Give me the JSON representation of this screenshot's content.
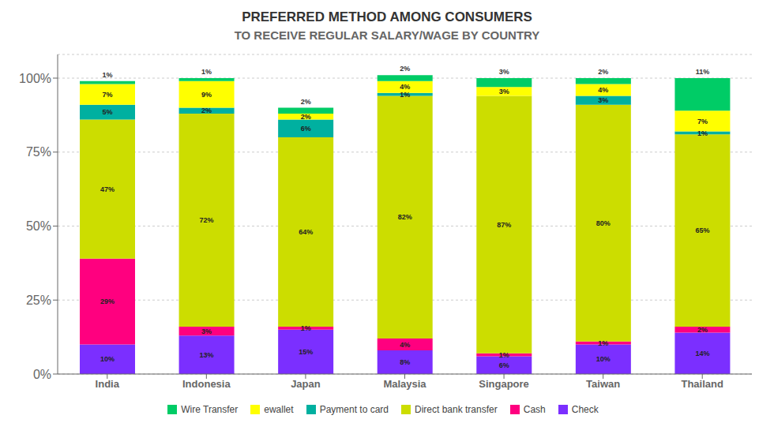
{
  "chart_data": {
    "type": "bar",
    "title": "PREFERRED METHOD AMONG CONSUMERS",
    "subtitle": "TO RECEIVE REGULAR SALARY/WAGE BY COUNTRY",
    "categories": [
      "India",
      "Indonesia",
      "Japan",
      "Malaysia",
      "Singapore",
      "Taiwan",
      "Thailand"
    ],
    "series": [
      {
        "name": "Check",
        "color": "#7b2fff",
        "values": [
          10,
          13,
          15,
          8,
          6,
          10,
          14
        ],
        "value_labels": [
          "10%",
          "13%",
          "15%",
          "8%",
          "6%",
          "10%",
          "14%"
        ]
      },
      {
        "name": "Cash",
        "color": "#ff007f",
        "values": [
          29,
          3,
          1,
          4,
          1,
          1,
          2
        ],
        "value_labels": [
          "29%",
          "3%",
          "1%",
          "4%",
          "1%",
          "1%",
          "2%"
        ]
      },
      {
        "name": "Direct bank transfer",
        "color": "#ccdd00",
        "values": [
          47,
          72,
          64,
          82,
          87,
          80,
          65
        ],
        "value_labels": [
          "47%",
          "72%",
          "64%",
          "82%",
          "87%",
          "80%",
          "65%"
        ]
      },
      {
        "name": "Payment to card",
        "color": "#00b0a0",
        "values": [
          5,
          2,
          6,
          1,
          0,
          3,
          1
        ],
        "value_labels": [
          "5%",
          "2%",
          "6%",
          "1%",
          null,
          "3%",
          "1%"
        ]
      },
      {
        "name": "ewallet",
        "color": "#ffff00",
        "values": [
          7,
          9,
          2,
          4,
          3,
          4,
          7
        ],
        "value_labels": [
          "7%",
          "9%",
          "2%",
          "4%",
          "3%",
          "4%",
          "7%"
        ]
      },
      {
        "name": "Wire Transfer",
        "color": "#00cc66",
        "values": [
          1,
          1,
          2,
          2,
          3,
          2,
          11
        ],
        "value_labels": [
          "1%",
          "1%",
          "2%",
          "2%",
          "3%",
          "2%",
          "11%"
        ]
      }
    ],
    "ylim": [
      0,
      108
    ],
    "yticks": [
      {
        "value": 0,
        "label": "0%"
      },
      {
        "value": 25,
        "label": "25%"
      },
      {
        "value": 50,
        "label": "50%"
      },
      {
        "value": 75,
        "label": "75%"
      },
      {
        "value": 100,
        "label": "100%"
      }
    ],
    "stacked": true,
    "data_labels": true,
    "grid": true,
    "legend": "bottom"
  }
}
